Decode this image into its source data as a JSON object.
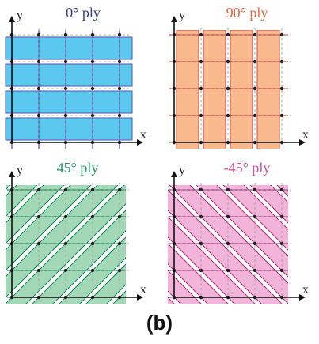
{
  "panels": [
    {
      "id": "p0",
      "title": "0° ply",
      "title_color": "#2c3e8c",
      "fill": "#5bc8f0",
      "line": "#5a4fb0",
      "orientation": "0"
    },
    {
      "id": "p90",
      "title": "90° ply",
      "title_color": "#e8673a",
      "fill": "#f8b98c",
      "line": "#d8433a",
      "orientation": "90"
    },
    {
      "id": "p45",
      "title": "45° ply",
      "title_color": "#1e9a62",
      "fill": "#a3d8b6",
      "line": "#138a55",
      "orientation": "45"
    },
    {
      "id": "pm45",
      "title": "-45° ply",
      "title_color": "#d04c9a",
      "fill": "#f2b4d8",
      "line": "#a8307c",
      "orientation": "-45"
    }
  ],
  "axis_x_label": "x",
  "axis_y_label": "y",
  "caption": "(b)",
  "colors": {
    "axis": "#111111",
    "grid": "#9a9a9a",
    "node": "#222222"
  }
}
